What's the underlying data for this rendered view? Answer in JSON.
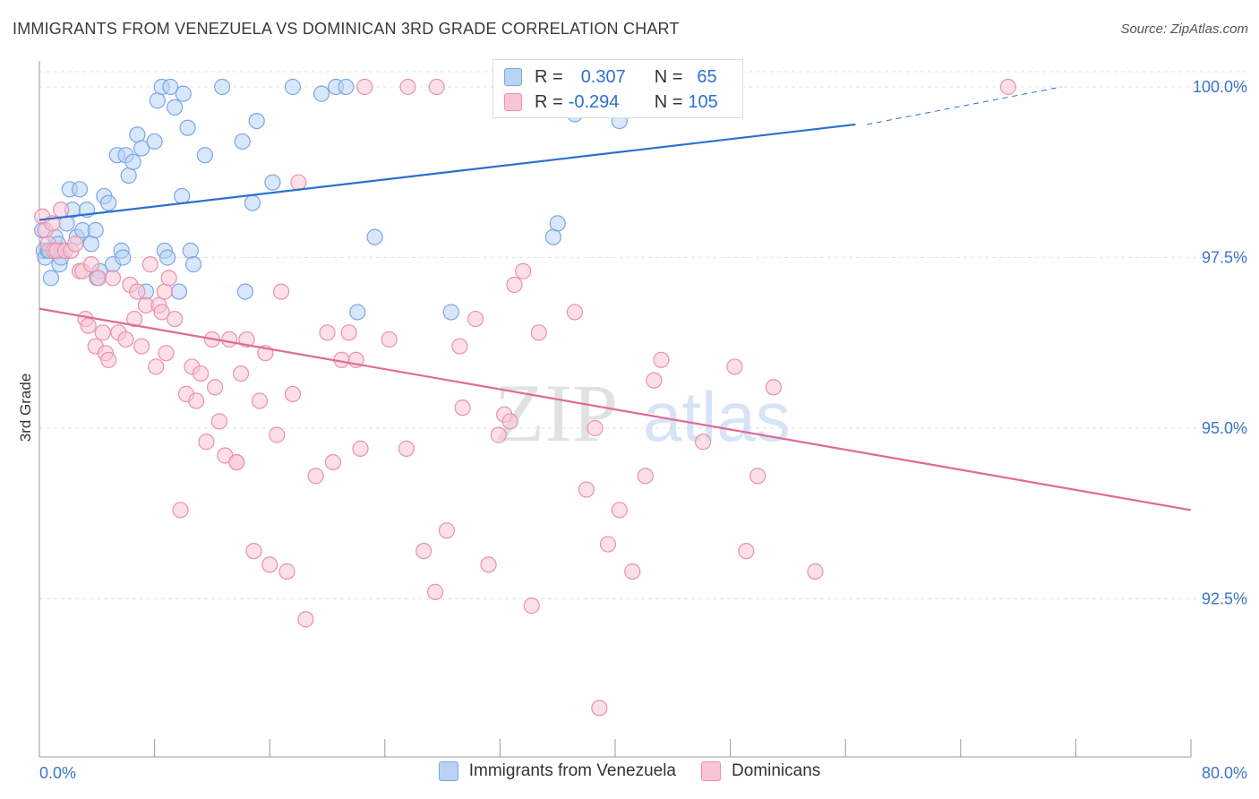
{
  "header": {
    "title": "IMMIGRANTS FROM VENEZUELA VS DOMINICAN 3RD GRADE CORRELATION CHART",
    "source": "Source: ZipAtlas.com"
  },
  "watermark": {
    "part1": "ZIP",
    "part2": "atlas"
  },
  "legend": {
    "r_label": "R =",
    "n_label": "N =",
    "rows": [
      {
        "r": "0.307",
        "n": "65",
        "color": "#7aa7e3"
      },
      {
        "r": "-0.294",
        "n": "105",
        "color": "#e991ad"
      }
    ]
  },
  "chart_data": {
    "type": "scatter",
    "title": "IMMIGRANTS FROM VENEZUELA VS DOMINICAN 3RD GRADE CORRELATION CHART",
    "xlabel": "",
    "ylabel": "3rd Grade",
    "xlim": [
      0,
      80
    ],
    "ylim": [
      90.0,
      100.5
    ],
    "x_tick_labels": [
      "0.0%",
      "80.0%"
    ],
    "y_ticks": [
      92.5,
      95.0,
      97.5,
      100.0
    ],
    "y_tick_labels": [
      "92.5%",
      "95.0%",
      "97.5%",
      "100.0%"
    ],
    "grid": true,
    "legend_position": "top-center",
    "series": [
      {
        "name": "Immigrants from Venezuela",
        "color": "#7aa7e3",
        "fill": "#b9d3f5",
        "trend": {
          "x": [
            0,
            56.7
          ],
          "y": [
            98.05,
            99.45
          ],
          "dashed_to": [
            57.5,
            99.45,
            71.0,
            100.0
          ]
        },
        "points": [
          [
            0.2,
            97.9
          ],
          [
            0.3,
            97.6
          ],
          [
            0.4,
            97.5
          ],
          [
            0.6,
            97.6
          ],
          [
            0.8,
            97.2
          ],
          [
            1.1,
            97.8
          ],
          [
            1.3,
            97.7
          ],
          [
            1.4,
            97.4
          ],
          [
            1.6,
            97.6
          ],
          [
            1.9,
            98.0
          ],
          [
            2.1,
            98.5
          ],
          [
            2.3,
            98.2
          ],
          [
            2.6,
            97.8
          ],
          [
            2.8,
            98.5
          ],
          [
            3.0,
            97.9
          ],
          [
            3.3,
            98.2
          ],
          [
            3.6,
            97.7
          ],
          [
            3.9,
            97.9
          ],
          [
            4.2,
            97.3
          ],
          [
            4.5,
            98.4
          ],
          [
            4.8,
            98.3
          ],
          [
            5.1,
            97.4
          ],
          [
            5.4,
            99.0
          ],
          [
            5.7,
            97.6
          ],
          [
            6.0,
            99.0
          ],
          [
            6.2,
            98.7
          ],
          [
            6.5,
            98.9
          ],
          [
            6.8,
            99.3
          ],
          [
            7.1,
            99.1
          ],
          [
            7.4,
            97.0
          ],
          [
            8.0,
            99.2
          ],
          [
            8.2,
            99.8
          ],
          [
            8.5,
            100.0
          ],
          [
            8.7,
            97.6
          ],
          [
            8.9,
            97.5
          ],
          [
            9.1,
            100.0
          ],
          [
            9.4,
            99.7
          ],
          [
            9.7,
            97.0
          ],
          [
            10.0,
            99.9
          ],
          [
            10.3,
            99.4
          ],
          [
            10.5,
            97.6
          ],
          [
            10.7,
            97.4
          ],
          [
            11.5,
            99.0
          ],
          [
            12.7,
            100.0
          ],
          [
            14.1,
            99.2
          ],
          [
            14.3,
            97.0
          ],
          [
            14.8,
            98.3
          ],
          [
            15.1,
            99.5
          ],
          [
            16.2,
            98.6
          ],
          [
            17.6,
            100.0
          ],
          [
            19.6,
            99.9
          ],
          [
            20.6,
            100.0
          ],
          [
            21.3,
            100.0
          ],
          [
            22.1,
            96.7
          ],
          [
            23.3,
            97.8
          ],
          [
            28.6,
            96.7
          ],
          [
            35.7,
            97.8
          ],
          [
            36.0,
            98.0
          ],
          [
            37.2,
            99.6
          ],
          [
            40.3,
            99.5
          ],
          [
            0.7,
            97.6
          ],
          [
            1.5,
            97.5
          ],
          [
            4.0,
            97.2
          ],
          [
            5.8,
            97.5
          ],
          [
            9.9,
            98.4
          ]
        ]
      },
      {
        "name": "Dominicans",
        "color": "#e991ad",
        "fill": "#f9c4d4",
        "trend": {
          "x": [
            0,
            80
          ],
          "y": [
            96.75,
            93.8
          ]
        },
        "points": [
          [
            0.2,
            98.1
          ],
          [
            0.4,
            97.9
          ],
          [
            0.6,
            97.7
          ],
          [
            0.9,
            98.0
          ],
          [
            1.0,
            97.6
          ],
          [
            1.2,
            97.6
          ],
          [
            1.5,
            98.2
          ],
          [
            1.8,
            97.6
          ],
          [
            2.2,
            97.6
          ],
          [
            2.5,
            97.7
          ],
          [
            2.8,
            97.3
          ],
          [
            3.0,
            97.3
          ],
          [
            3.2,
            96.6
          ],
          [
            3.4,
            96.5
          ],
          [
            3.6,
            97.4
          ],
          [
            3.9,
            96.2
          ],
          [
            4.1,
            97.2
          ],
          [
            4.4,
            96.4
          ],
          [
            4.6,
            96.1
          ],
          [
            4.8,
            96.0
          ],
          [
            5.1,
            97.2
          ],
          [
            5.5,
            96.4
          ],
          [
            6.0,
            96.3
          ],
          [
            6.3,
            97.1
          ],
          [
            6.8,
            97.0
          ],
          [
            7.1,
            96.2
          ],
          [
            7.4,
            96.8
          ],
          [
            7.7,
            97.4
          ],
          [
            8.1,
            95.9
          ],
          [
            8.3,
            96.8
          ],
          [
            8.5,
            96.7
          ],
          [
            8.7,
            97.0
          ],
          [
            9.0,
            97.2
          ],
          [
            9.4,
            96.6
          ],
          [
            9.8,
            93.8
          ],
          [
            10.2,
            95.5
          ],
          [
            10.6,
            95.9
          ],
          [
            10.9,
            95.4
          ],
          [
            11.2,
            95.8
          ],
          [
            11.6,
            94.8
          ],
          [
            12.0,
            96.3
          ],
          [
            12.2,
            95.6
          ],
          [
            12.5,
            95.1
          ],
          [
            12.9,
            94.6
          ],
          [
            13.2,
            96.3
          ],
          [
            13.7,
            94.5
          ],
          [
            14.0,
            95.8
          ],
          [
            14.4,
            96.3
          ],
          [
            14.9,
            93.2
          ],
          [
            15.3,
            95.4
          ],
          [
            15.7,
            96.1
          ],
          [
            16.0,
            93.0
          ],
          [
            16.5,
            94.9
          ],
          [
            16.8,
            97.0
          ],
          [
            17.2,
            92.9
          ],
          [
            17.6,
            95.5
          ],
          [
            18.0,
            98.6
          ],
          [
            18.5,
            92.2
          ],
          [
            19.2,
            94.3
          ],
          [
            20.0,
            96.4
          ],
          [
            20.4,
            94.5
          ],
          [
            21.0,
            96.0
          ],
          [
            21.5,
            96.4
          ],
          [
            22.0,
            96.0
          ],
          [
            22.3,
            94.7
          ],
          [
            24.3,
            96.3
          ],
          [
            25.5,
            94.7
          ],
          [
            26.7,
            93.2
          ],
          [
            27.5,
            92.6
          ],
          [
            28.3,
            93.5
          ],
          [
            29.2,
            96.2
          ],
          [
            30.3,
            96.6
          ],
          [
            31.2,
            93.0
          ],
          [
            31.9,
            94.9
          ],
          [
            32.3,
            95.2
          ],
          [
            32.7,
            95.1
          ],
          [
            33.0,
            97.1
          ],
          [
            33.6,
            97.3
          ],
          [
            34.2,
            92.4
          ],
          [
            34.7,
            96.4
          ],
          [
            37.2,
            96.7
          ],
          [
            38.0,
            94.1
          ],
          [
            38.6,
            95.0
          ],
          [
            38.9,
            90.9
          ],
          [
            39.5,
            93.3
          ],
          [
            40.3,
            93.8
          ],
          [
            41.2,
            92.9
          ],
          [
            42.1,
            94.3
          ],
          [
            42.7,
            95.7
          ],
          [
            43.2,
            96.0
          ],
          [
            46.1,
            94.8
          ],
          [
            48.3,
            95.9
          ],
          [
            49.1,
            93.2
          ],
          [
            49.9,
            94.3
          ],
          [
            51.0,
            95.6
          ],
          [
            53.9,
            92.9
          ],
          [
            67.3,
            100.0
          ],
          [
            22.6,
            100.0
          ],
          [
            25.6,
            100.0
          ],
          [
            27.6,
            100.0
          ],
          [
            32.7,
            100.0
          ],
          [
            29.4,
            95.3
          ],
          [
            8.8,
            96.1
          ],
          [
            6.6,
            96.6
          ],
          [
            13.7,
            94.5
          ]
        ]
      }
    ]
  }
}
